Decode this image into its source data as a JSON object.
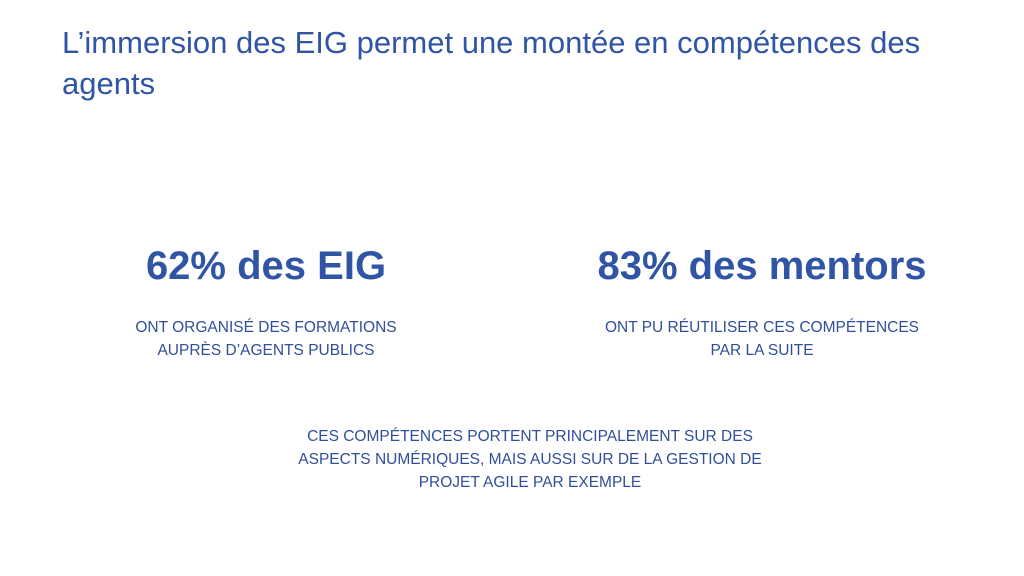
{
  "slide": {
    "title": "L’immersion des EIG permet une montée en compétences des agents",
    "stats": [
      {
        "figure": "62% des EIG",
        "caption_lines": [
          "ONT ORGANISÉ DES FORMATIONS",
          "AUPRÈS D’AGENTS PUBLICS"
        ]
      },
      {
        "figure": "83% des mentors",
        "caption_lines": [
          "ONT PU RÉUTILISER CES COMPÉTENCES",
          "PAR LA SUITE"
        ]
      }
    ],
    "note_lines": [
      "CES COMPÉTENCES PORTENT PRINCIPALEMENT SUR DES",
      "ASPECTS NUMÉRIQUES, MAIS AUSSI SUR DE LA GESTION DE",
      "PROJET AGILE PAR EXEMPLE"
    ]
  },
  "colors": {
    "accent": "#2f55a4",
    "text": "#2f4f9a",
    "background": "#ffffff"
  }
}
